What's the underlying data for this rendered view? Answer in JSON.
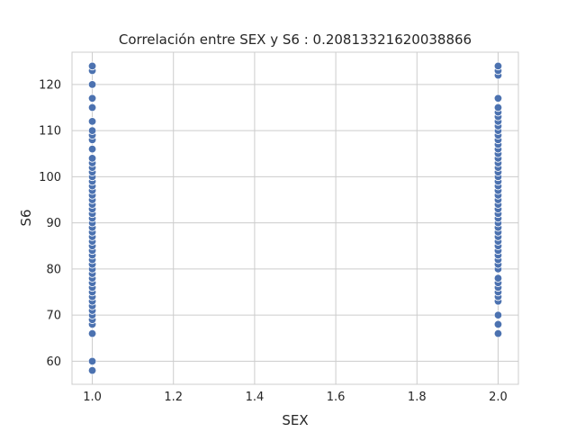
{
  "chart_data": {
    "type": "scatter",
    "title": "Correlación entre SEX y S6 : 0.20813321620038866",
    "xlabel": "SEX",
    "ylabel": "S6",
    "xlim": [
      0.95,
      2.05
    ],
    "ylim": [
      55,
      127
    ],
    "xticks": [
      1.0,
      1.2,
      1.4,
      1.6,
      1.8,
      2.0
    ],
    "xtick_labels": [
      "1.0",
      "1.2",
      "1.4",
      "1.6",
      "1.8",
      "2.0"
    ],
    "yticks": [
      60,
      70,
      80,
      90,
      100,
      110,
      120
    ],
    "ytick_labels": [
      "60",
      "70",
      "80",
      "90",
      "100",
      "110",
      "120"
    ],
    "grid": true,
    "point_color": "#4c72b0",
    "series": [
      {
        "x": 1.0,
        "y": [
          58,
          60,
          66,
          68,
          69,
          70,
          71,
          72,
          73,
          74,
          75,
          76,
          77,
          78,
          79,
          80,
          81,
          82,
          83,
          84,
          85,
          86,
          87,
          88,
          89,
          90,
          91,
          92,
          93,
          94,
          95,
          96,
          97,
          98,
          99,
          100,
          101,
          102,
          103,
          104,
          106,
          108,
          109,
          110,
          112,
          115,
          117,
          120,
          123,
          124
        ]
      },
      {
        "x": 2.0,
        "y": [
          66,
          68,
          70,
          73,
          74,
          75,
          76,
          77,
          78,
          80,
          81,
          82,
          83,
          84,
          85,
          86,
          87,
          88,
          89,
          90,
          91,
          92,
          93,
          94,
          95,
          96,
          97,
          98,
          99,
          100,
          101,
          102,
          103,
          104,
          105,
          106,
          107,
          108,
          109,
          110,
          111,
          112,
          113,
          114,
          115,
          117,
          122,
          123,
          124
        ]
      }
    ]
  }
}
